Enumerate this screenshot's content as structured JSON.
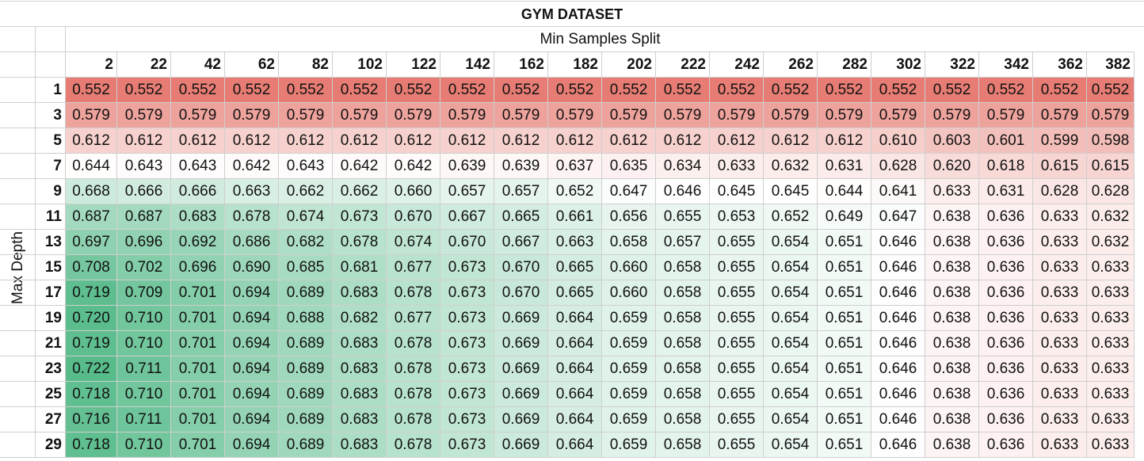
{
  "chart_data": {
    "type": "heatmap",
    "title": "GYM DATASET",
    "xlabel": "Min Samples Split",
    "ylabel": "Max Depth",
    "x": [
      2,
      22,
      42,
      62,
      82,
      102,
      122,
      142,
      162,
      182,
      202,
      222,
      242,
      262,
      282,
      302,
      322,
      342,
      362,
      382
    ],
    "y": [
      1,
      3,
      5,
      7,
      9,
      11,
      13,
      15,
      17,
      19,
      21,
      23,
      25,
      27,
      29
    ],
    "values": [
      [
        "0.552",
        "0.552",
        "0.552",
        "0.552",
        "0.552",
        "0.552",
        "0.552",
        "0.552",
        "0.552",
        "0.552",
        "0.552",
        "0.552",
        "0.552",
        "0.552",
        "0.552",
        "0.552",
        "0.552",
        "0.552",
        "0.552",
        "0.552"
      ],
      [
        "0.579",
        "0.579",
        "0.579",
        "0.579",
        "0.579",
        "0.579",
        "0.579",
        "0.579",
        "0.579",
        "0.579",
        "0.579",
        "0.579",
        "0.579",
        "0.579",
        "0.579",
        "0.579",
        "0.579",
        "0.579",
        "0.579",
        "0.579"
      ],
      [
        "0.612",
        "0.612",
        "0.612",
        "0.612",
        "0.612",
        "0.612",
        "0.612",
        "0.612",
        "0.612",
        "0.612",
        "0.612",
        "0.612",
        "0.612",
        "0.612",
        "0.612",
        "0.610",
        "0.603",
        "0.601",
        "0.599",
        "0.598"
      ],
      [
        "0.644",
        "0.643",
        "0.643",
        "0.642",
        "0.643",
        "0.642",
        "0.642",
        "0.639",
        "0.639",
        "0.637",
        "0.635",
        "0.634",
        "0.633",
        "0.632",
        "0.631",
        "0.628",
        "0.620",
        "0.618",
        "0.615",
        "0.615"
      ],
      [
        "0.668",
        "0.666",
        "0.666",
        "0.663",
        "0.662",
        "0.662",
        "0.660",
        "0.657",
        "0.657",
        "0.652",
        "0.647",
        "0.646",
        "0.645",
        "0.645",
        "0.644",
        "0.641",
        "0.633",
        "0.631",
        "0.628",
        "0.628"
      ],
      [
        "0.687",
        "0.687",
        "0.683",
        "0.678",
        "0.674",
        "0.673",
        "0.670",
        "0.667",
        "0.665",
        "0.661",
        "0.656",
        "0.655",
        "0.653",
        "0.652",
        "0.649",
        "0.647",
        "0.638",
        "0.636",
        "0.633",
        "0.632"
      ],
      [
        "0.697",
        "0.696",
        "0.692",
        "0.686",
        "0.682",
        "0.678",
        "0.674",
        "0.670",
        "0.667",
        "0.663",
        "0.658",
        "0.657",
        "0.655",
        "0.654",
        "0.651",
        "0.646",
        "0.638",
        "0.636",
        "0.633",
        "0.632"
      ],
      [
        "0.708",
        "0.702",
        "0.696",
        "0.690",
        "0.685",
        "0.681",
        "0.677",
        "0.673",
        "0.670",
        "0.665",
        "0.660",
        "0.658",
        "0.655",
        "0.654",
        "0.651",
        "0.646",
        "0.638",
        "0.636",
        "0.633",
        "0.633"
      ],
      [
        "0.719",
        "0.709",
        "0.701",
        "0.694",
        "0.689",
        "0.683",
        "0.678",
        "0.673",
        "0.670",
        "0.665",
        "0.660",
        "0.658",
        "0.655",
        "0.654",
        "0.651",
        "0.646",
        "0.638",
        "0.636",
        "0.633",
        "0.633"
      ],
      [
        "0.720",
        "0.710",
        "0.701",
        "0.694",
        "0.688",
        "0.682",
        "0.677",
        "0.673",
        "0.669",
        "0.664",
        "0.659",
        "0.658",
        "0.655",
        "0.654",
        "0.651",
        "0.646",
        "0.638",
        "0.636",
        "0.633",
        "0.633"
      ],
      [
        "0.719",
        "0.710",
        "0.701",
        "0.694",
        "0.689",
        "0.683",
        "0.678",
        "0.673",
        "0.669",
        "0.664",
        "0.659",
        "0.658",
        "0.655",
        "0.654",
        "0.651",
        "0.646",
        "0.638",
        "0.636",
        "0.633",
        "0.633"
      ],
      [
        "0.722",
        "0.711",
        "0.701",
        "0.694",
        "0.689",
        "0.683",
        "0.678",
        "0.673",
        "0.669",
        "0.664",
        "0.659",
        "0.658",
        "0.655",
        "0.654",
        "0.651",
        "0.646",
        "0.638",
        "0.636",
        "0.633",
        "0.633"
      ],
      [
        "0.718",
        "0.710",
        "0.701",
        "0.694",
        "0.689",
        "0.683",
        "0.678",
        "0.673",
        "0.669",
        "0.664",
        "0.659",
        "0.658",
        "0.655",
        "0.654",
        "0.651",
        "0.646",
        "0.638",
        "0.636",
        "0.633",
        "0.633"
      ],
      [
        "0.716",
        "0.711",
        "0.701",
        "0.694",
        "0.689",
        "0.683",
        "0.678",
        "0.673",
        "0.669",
        "0.664",
        "0.659",
        "0.658",
        "0.655",
        "0.654",
        "0.651",
        "0.646",
        "0.638",
        "0.636",
        "0.633",
        "0.633"
      ],
      [
        "0.718",
        "0.710",
        "0.701",
        "0.694",
        "0.689",
        "0.683",
        "0.678",
        "0.673",
        "0.669",
        "0.664",
        "0.659",
        "0.658",
        "0.655",
        "0.654",
        "0.651",
        "0.646",
        "0.638",
        "0.636",
        "0.633",
        "0.633"
      ]
    ],
    "color_scale": {
      "low": "#e67c73",
      "mid": "#ffffff",
      "high": "#57bb8a"
    }
  }
}
